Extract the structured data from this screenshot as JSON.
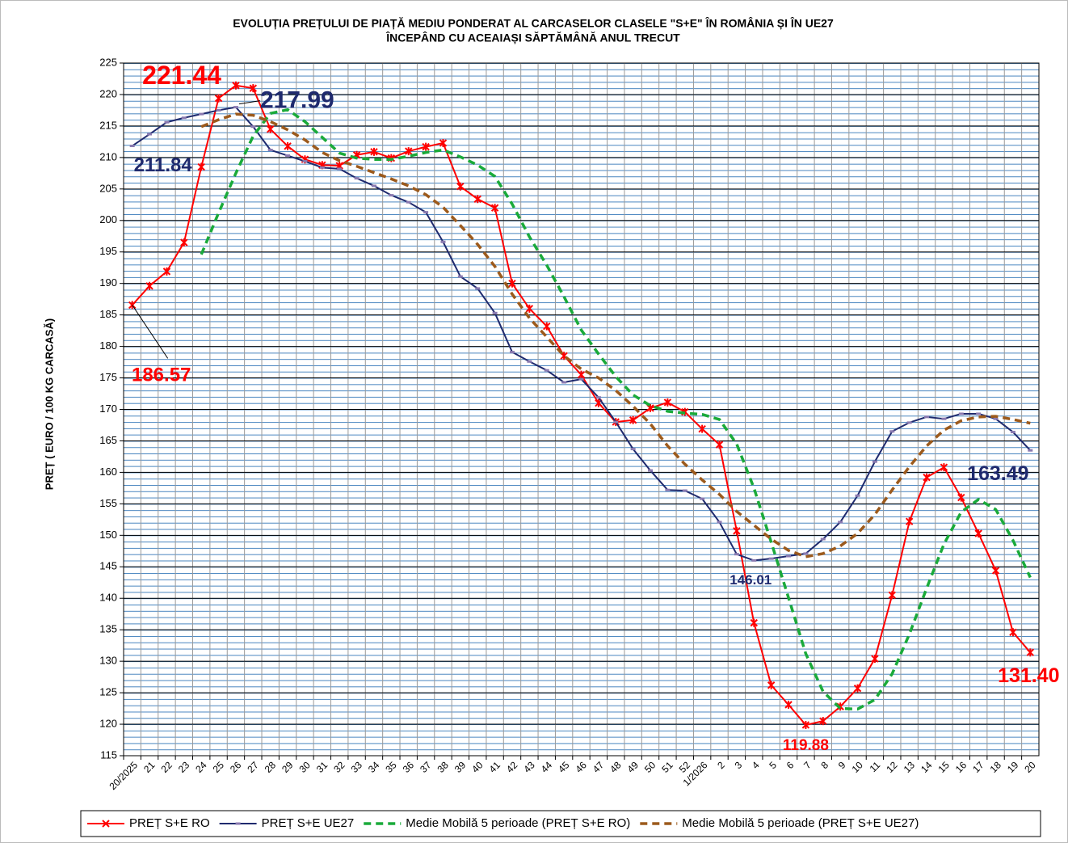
{
  "chart_data": {
    "type": "line",
    "title": "EVOLUȚIA PREȚULUI DE PIAȚĂ MEDIU PONDERAT AL CARCASELOR  CLASELE \"S+E\" ÎN ROMÂNIA  ȘI ÎN UE27",
    "subtitle": "ÎNCEPÂND  CU ACEAIAȘI  SĂPTĂMÂNĂ  ANUL TRECUT",
    "y_label": "PREȚ ( EURO / 100 KG CARCASĂ)",
    "categories": [
      "20/2025",
      "21",
      "22",
      "23",
      "24",
      "25",
      "26",
      "27",
      "28",
      "29",
      "30",
      "31",
      "32",
      "33",
      "34",
      "35",
      "36",
      "37",
      "38",
      "39",
      "40",
      "41",
      "42",
      "43",
      "44",
      "45",
      "46",
      "47",
      "48",
      "49",
      "50",
      "51",
      "52",
      "1/2026",
      "2",
      "3",
      "4",
      "5",
      "6",
      "7",
      "8",
      "9",
      "10",
      "11",
      "12",
      "13",
      "14",
      "15",
      "16",
      "17",
      "18",
      "19",
      "20"
    ],
    "ylim": [
      115,
      225
    ],
    "yticks": [
      115,
      120,
      125,
      130,
      135,
      140,
      145,
      150,
      155,
      160,
      165,
      170,
      175,
      180,
      185,
      190,
      195,
      200,
      205,
      210,
      215,
      220,
      225
    ],
    "grid": true,
    "legend": "bottom",
    "series": [
      {
        "name": "PREȚ S+E RO",
        "color": "#ff0000",
        "dashed": false,
        "marker": "star",
        "values": [
          186.57,
          189.6,
          191.9,
          196.5,
          208.5,
          219.4,
          221.44,
          221.0,
          214.5,
          211.8,
          209.7,
          208.8,
          208.7,
          210.4,
          210.9,
          209.9,
          211.0,
          211.7,
          212.3,
          205.4,
          203.4,
          202.0,
          190.0,
          186.0,
          183.2,
          178.5,
          175.5,
          171.0,
          168.0,
          168.3,
          170.2,
          171.1,
          169.6,
          166.9,
          164.4,
          150.7,
          136.1,
          126.2,
          123.1,
          119.88,
          120.5,
          122.8,
          125.7,
          130.4,
          140.5,
          152.2,
          159.2,
          160.8,
          156.0,
          150.3,
          144.4,
          134.6,
          131.4
        ],
        "value_labels": [
          "186.57",
          null,
          null,
          null,
          null,
          null,
          "221.44",
          null,
          null,
          null,
          null,
          null,
          null,
          null,
          null,
          null,
          null,
          null,
          null,
          null,
          null,
          null,
          null,
          null,
          null,
          null,
          null,
          null,
          null,
          null,
          null,
          null,
          null,
          null,
          null,
          null,
          null,
          null,
          null,
          "119.88",
          null,
          null,
          null,
          null,
          null,
          null,
          null,
          null,
          null,
          null,
          null,
          null,
          "131.40"
        ]
      },
      {
        "name": "PREȚ S+E UE27",
        "color": "#1f2a6e",
        "dashed": false,
        "marker": "square",
        "values": [
          211.84,
          213.7,
          215.6,
          216.3,
          216.9,
          217.5,
          217.99,
          214.9,
          211.2,
          210.3,
          209.4,
          208.4,
          208.2,
          206.7,
          205.5,
          204.0,
          202.9,
          201.3,
          196.6,
          191.1,
          189.2,
          185.3,
          179.1,
          177.6,
          176.2,
          174.3,
          174.8,
          171.9,
          168.0,
          163.7,
          160.3,
          157.2,
          157.1,
          155.8,
          152.1,
          147.0,
          146.01,
          146.3,
          146.7,
          147.1,
          149.4,
          152.1,
          156.3,
          161.7,
          166.5,
          167.9,
          168.8,
          168.5,
          169.3,
          169.3,
          168.5,
          166.4,
          163.49
        ],
        "value_labels": [
          "211.84",
          null,
          null,
          null,
          null,
          null,
          "217.99",
          null,
          null,
          null,
          null,
          null,
          null,
          null,
          null,
          null,
          null,
          null,
          null,
          null,
          null,
          null,
          null,
          null,
          null,
          null,
          null,
          null,
          null,
          null,
          null,
          null,
          null,
          null,
          null,
          null,
          "146.01",
          null,
          null,
          null,
          null,
          null,
          null,
          null,
          null,
          null,
          null,
          null,
          null,
          null,
          null,
          null,
          "163.49"
        ]
      },
      {
        "name": "Medie Mobilă 5 perioade  (PREȚ S+E RO)",
        "color": "#1aaa3a",
        "dashed": true,
        "marker": "none",
        "values": [
          null,
          null,
          null,
          null,
          194.6,
          201.2,
          207.5,
          213.4,
          217.0,
          217.6,
          215.7,
          213.2,
          210.7,
          209.9,
          209.7,
          209.7,
          210.2,
          210.8,
          211.2,
          210.1,
          208.8,
          207.0,
          202.6,
          197.4,
          192.9,
          187.9,
          182.6,
          178.8,
          175.2,
          172.3,
          170.6,
          169.7,
          169.4,
          169.2,
          168.4,
          164.5,
          157.5,
          148.9,
          140.1,
          131.2,
          125.2,
          122.5,
          122.4,
          123.9,
          128.0,
          134.3,
          141.6,
          148.6,
          153.7,
          155.7,
          154.1,
          149.2,
          143.3
        ]
      },
      {
        "name": "Medie Mobilă 5 perioade  (PREȚ S+E UE27)",
        "color": "#9c5a1c",
        "dashed": true,
        "marker": "none",
        "values": [
          null,
          null,
          null,
          null,
          214.9,
          216.0,
          216.9,
          216.7,
          215.7,
          214.4,
          212.8,
          210.8,
          209.5,
          208.6,
          207.6,
          206.6,
          205.5,
          204.1,
          202.1,
          199.2,
          196.2,
          192.7,
          188.3,
          184.5,
          181.5,
          178.5,
          176.4,
          175.0,
          173.0,
          170.5,
          167.7,
          164.2,
          161.3,
          158.8,
          156.5,
          153.8,
          151.6,
          149.4,
          147.6,
          146.6,
          147.1,
          148.3,
          150.3,
          153.3,
          157.2,
          160.9,
          164.2,
          166.7,
          168.2,
          168.8,
          168.9,
          168.4,
          167.8
        ]
      }
    ]
  }
}
